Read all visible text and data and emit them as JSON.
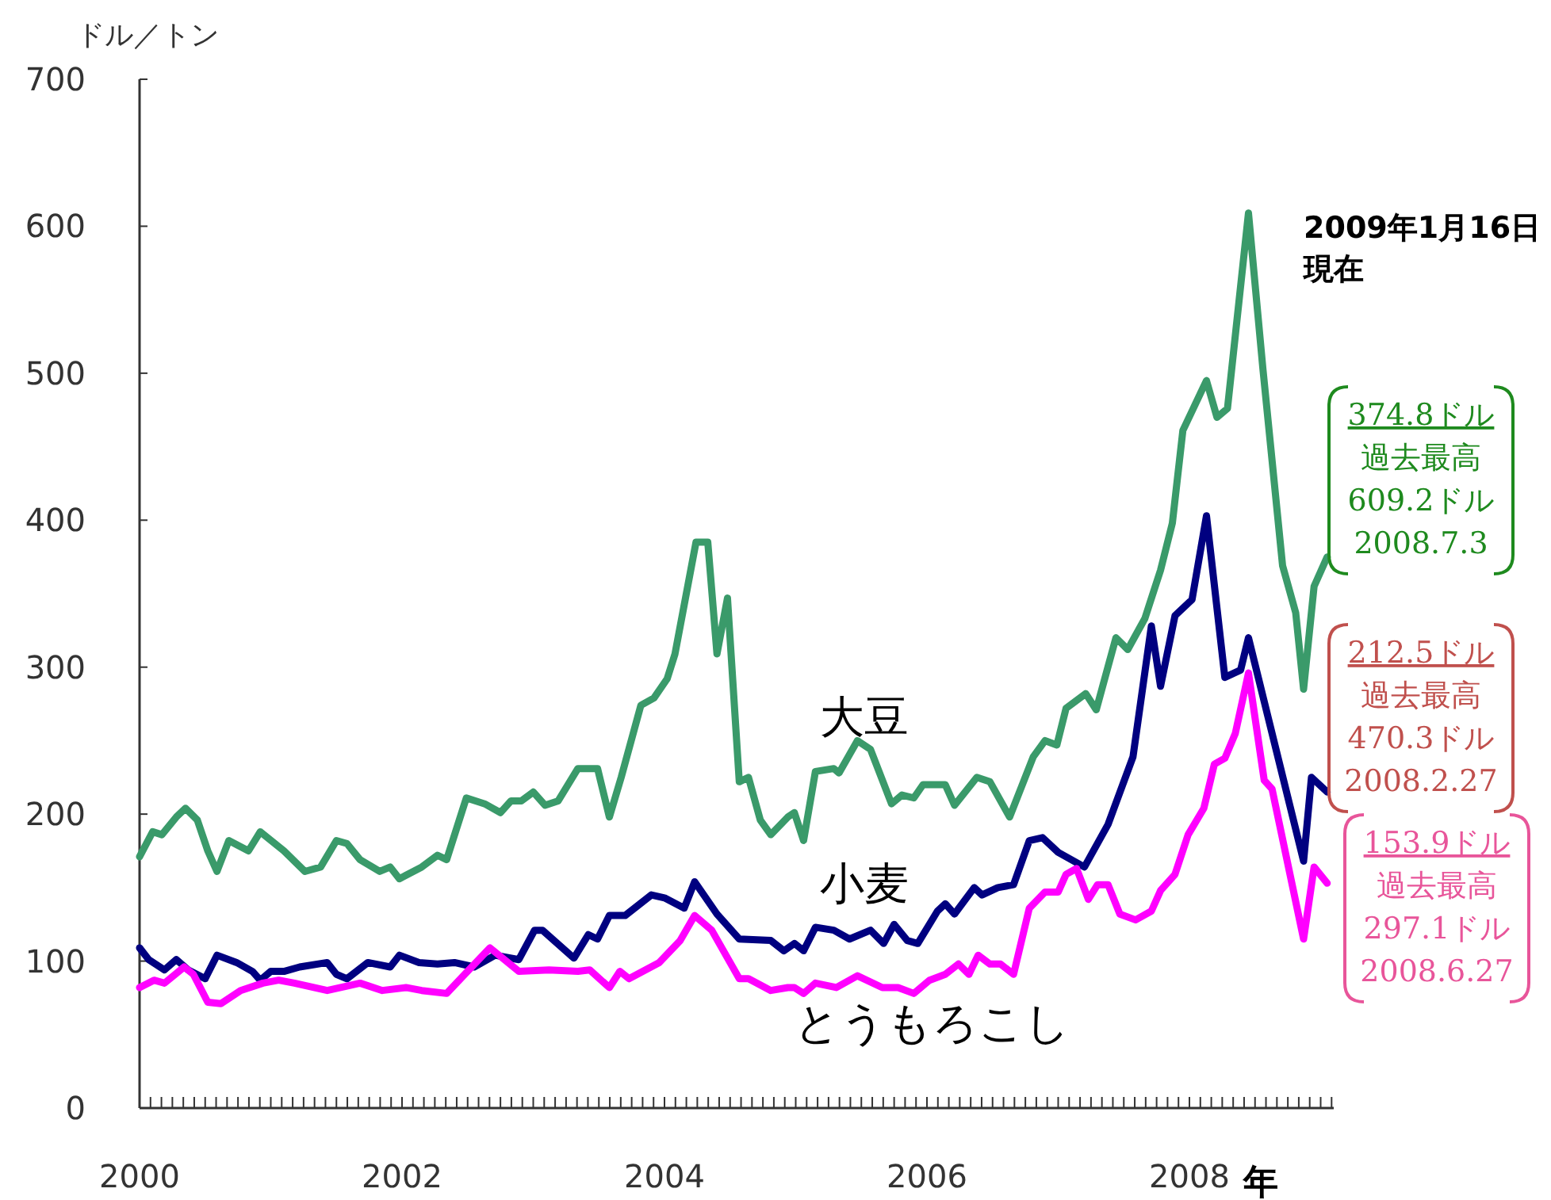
{
  "chart_data": {
    "type": "line",
    "ylabel": "ドル／トン",
    "xlabel": "年",
    "xlim": [
      2000,
      2009.1
    ],
    "ylim": [
      0,
      700
    ],
    "xticks": [
      2000,
      2002,
      2004,
      2006,
      2008
    ],
    "yticks": [
      0,
      100,
      200,
      300,
      400,
      500,
      600,
      700
    ],
    "grid": false,
    "marker": "none",
    "line_style": "solid",
    "series": [
      {
        "name": "大豆",
        "color": "#3a9a6a",
        "x": [
          2000,
          2000.1,
          2000.17,
          2000.28,
          2000.35,
          2000.44,
          2000.52,
          2000.59,
          2000.68,
          2000.83,
          2000.92,
          2001.1,
          2001.26,
          2001.38,
          2001.5,
          2001.58,
          2001.68,
          2001.83,
          2001.91,
          2001.98,
          2002.15,
          2002.27,
          2002.34,
          2002.49,
          2002.63,
          2002.75,
          2002.83,
          2002.91,
          2003.0,
          2003.09,
          2003.19,
          2003.34,
          2003.49,
          2003.58,
          2003.67,
          2003.82,
          2003.92,
          2004.02,
          2004.08,
          2004.24,
          2004.33,
          2004.4,
          2004.48,
          2004.57,
          2004.64,
          2004.73,
          2004.81,
          2004.94,
          2004.99,
          2005.06,
          2005.15,
          2005.29,
          2005.33,
          2005.47,
          2005.57,
          2005.73,
          2005.81,
          2005.9,
          2005.97,
          2006.14,
          2006.21,
          2006.38,
          2006.48,
          2006.63,
          2006.81,
          2006.9,
          2006.99,
          2007.06,
          2007.21,
          2007.29,
          2007.44,
          2007.53,
          2007.66,
          2007.78,
          2007.87,
          2007.95,
          2008.13,
          2008.21,
          2008.29,
          2008.45,
          2008.56,
          2008.71,
          2008.81,
          2008.87,
          2008.95,
          2009.05
        ],
        "values": [
          171,
          188,
          186,
          198,
          204,
          196,
          175,
          161,
          182,
          175,
          188,
          175,
          161,
          164,
          182,
          180,
          169,
          161,
          164,
          156,
          164,
          172,
          169,
          211,
          207,
          201,
          209,
          209,
          215,
          206,
          209,
          231,
          231,
          198,
          225,
          274,
          279,
          292,
          309,
          385,
          385,
          309,
          347,
          222,
          225,
          196,
          186,
          198,
          201,
          182,
          229,
          231,
          228,
          250,
          244,
          207,
          213,
          211,
          220,
          220,
          206,
          225,
          222,
          198,
          239,
          250,
          247,
          272,
          282,
          271,
          320,
          312,
          333,
          366,
          398,
          461,
          495,
          470,
          476,
          609,
          503,
          369,
          337,
          285,
          355,
          375
        ]
      },
      {
        "name": "小麦",
        "color": "#000080",
        "x": [
          2000,
          2000.07,
          2000.19,
          2000.28,
          2000.37,
          2000.5,
          2000.59,
          2000.74,
          2000.86,
          2000.92,
          2001.0,
          2001.1,
          2001.22,
          2001.43,
          2001.5,
          2001.58,
          2001.74,
          2001.91,
          2001.98,
          2002.13,
          2002.27,
          2002.4,
          2002.55,
          2002.71,
          2002.89,
          2003.01,
          2003.07,
          2003.31,
          2003.42,
          2003.49,
          2003.58,
          2003.7,
          2003.9,
          2004.0,
          2004.15,
          2004.23,
          2004.4,
          2004.57,
          2004.81,
          2004.91,
          2004.99,
          2005.06,
          2005.15,
          2005.29,
          2005.41,
          2005.57,
          2005.67,
          2005.75,
          2005.85,
          2005.93,
          2006.08,
          2006.14,
          2006.21,
          2006.36,
          2006.42,
          2006.54,
          2006.66,
          2006.78,
          2006.88,
          2007.0,
          2007.2,
          2007.38,
          2007.57,
          2007.71,
          2007.78,
          2007.89,
          2008.02,
          2008.13,
          2008.27,
          2008.39,
          2008.45,
          2008.87,
          2008.93,
          2009.05
        ],
        "values": [
          109,
          101,
          94,
          101,
          94,
          88,
          104,
          99,
          93,
          87,
          93,
          93,
          96,
          99,
          91,
          88,
          99,
          96,
          104,
          99,
          98,
          99,
          96,
          104,
          101,
          121,
          121,
          102,
          118,
          115,
          131,
          131,
          145,
          143,
          136,
          154,
          132,
          115,
          114,
          107,
          112,
          107,
          123,
          121,
          115,
          121,
          112,
          125,
          114,
          112,
          134,
          139,
          132,
          150,
          145,
          150,
          152,
          182,
          184,
          174,
          164,
          193,
          239,
          328,
          287,
          335,
          346,
          403,
          293,
          298,
          320,
          168,
          225,
          215
        ]
      },
      {
        "name": "とうもろこし",
        "color": "#ff00ff",
        "x": [
          2000,
          2000.11,
          2000.19,
          2000.34,
          2000.41,
          2000.52,
          2000.62,
          2000.77,
          2000.94,
          2001.06,
          2001.18,
          2001.43,
          2001.58,
          2001.68,
          2001.85,
          2002.03,
          2002.15,
          2002.34,
          2002.51,
          2002.67,
          2002.89,
          2003.12,
          2003.34,
          2003.43,
          2003.58,
          2003.66,
          2003.73,
          2003.96,
          2004.12,
          2004.23,
          2004.36,
          2004.57,
          2004.64,
          2004.81,
          2004.94,
          2004.99,
          2005.06,
          2005.15,
          2005.31,
          2005.47,
          2005.66,
          2005.78,
          2005.9,
          2006.02,
          2006.14,
          2006.24,
          2006.32,
          2006.39,
          2006.48,
          2006.56,
          2006.66,
          2006.78,
          2006.9,
          2007.0,
          2007.06,
          2007.14,
          2007.23,
          2007.3,
          2007.38,
          2007.47,
          2007.59,
          2007.71,
          2007.78,
          2007.89,
          2007.99,
          2008.11,
          2008.19,
          2008.27,
          2008.35,
          2008.45,
          2008.57,
          2008.63,
          2008.87,
          2008.95,
          2009.05
        ],
        "values": [
          82,
          87,
          85,
          96,
          91,
          72,
          71,
          80,
          85,
          87,
          85,
          80,
          83,
          85,
          80,
          82,
          80,
          78,
          94,
          109,
          93,
          94,
          93,
          94,
          82,
          93,
          88,
          99,
          114,
          131,
          121,
          88,
          88,
          80,
          82,
          82,
          78,
          85,
          82,
          90,
          82,
          82,
          78,
          87,
          91,
          98,
          91,
          104,
          98,
          98,
          91,
          136,
          147,
          147,
          159,
          163,
          142,
          152,
          152,
          132,
          128,
          134,
          148,
          159,
          186,
          204,
          234,
          238,
          255,
          296,
          223,
          217,
          115,
          164,
          153
        ]
      }
    ],
    "annotations": [
      "2009年1月16日",
      "現在",
      "374.8ドル",
      "過去最高",
      "609.2ドル",
      "2008.7.3",
      "212.5ドル",
      "過去最高",
      "470.3ドル",
      "2008.2.27",
      "153.9ドル",
      "過去最高",
      "297.1ドル",
      "2008.6.27"
    ]
  }
}
